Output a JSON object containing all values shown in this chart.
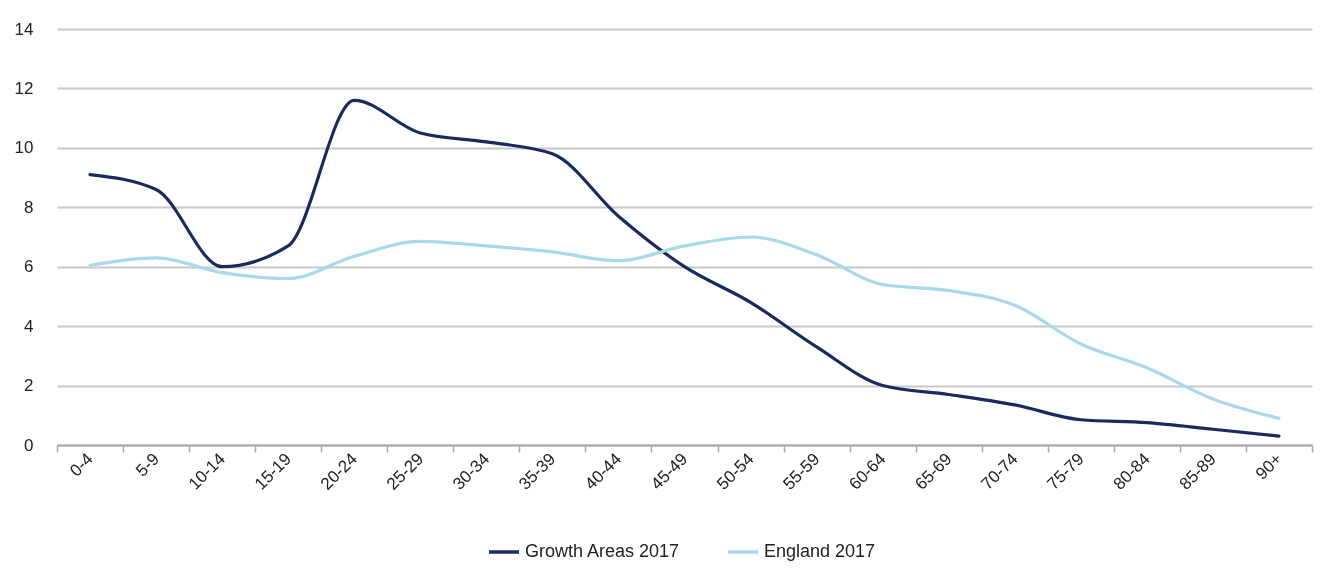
{
  "chart_data": {
    "type": "line",
    "categories": [
      "0-4",
      "5-9",
      "10-14",
      "15-19",
      "20-24",
      "25-29",
      "30-34",
      "35-39",
      "40-44",
      "45-49",
      "50-54",
      "55-59",
      "60-64",
      "65-69",
      "70-74",
      "75-79",
      "80-84",
      "85-89",
      "90+"
    ],
    "series": [
      {
        "name": "Growth Areas 2017",
        "color": "#1b2a5e",
        "values": [
          9.1,
          8.6,
          6.0,
          6.7,
          11.6,
          10.5,
          10.2,
          9.8,
          7.7,
          6.0,
          4.8,
          3.3,
          2.0,
          1.7,
          1.35,
          0.85,
          0.75,
          0.53,
          0.3
        ]
      },
      {
        "name": "England 2017",
        "color": "#a8d8ea",
        "values": [
          6.05,
          6.3,
          5.8,
          5.6,
          6.35,
          6.85,
          6.7,
          6.5,
          6.2,
          6.7,
          7.0,
          6.4,
          5.4,
          5.2,
          4.7,
          3.4,
          2.6,
          1.55,
          0.9
        ]
      }
    ],
    "ylim": [
      0,
      14
    ],
    "yticks": [
      0,
      2,
      4,
      6,
      8,
      10,
      12,
      14
    ],
    "grid": "y",
    "legend": "bottom",
    "line_style": "solid",
    "marker": "none"
  }
}
